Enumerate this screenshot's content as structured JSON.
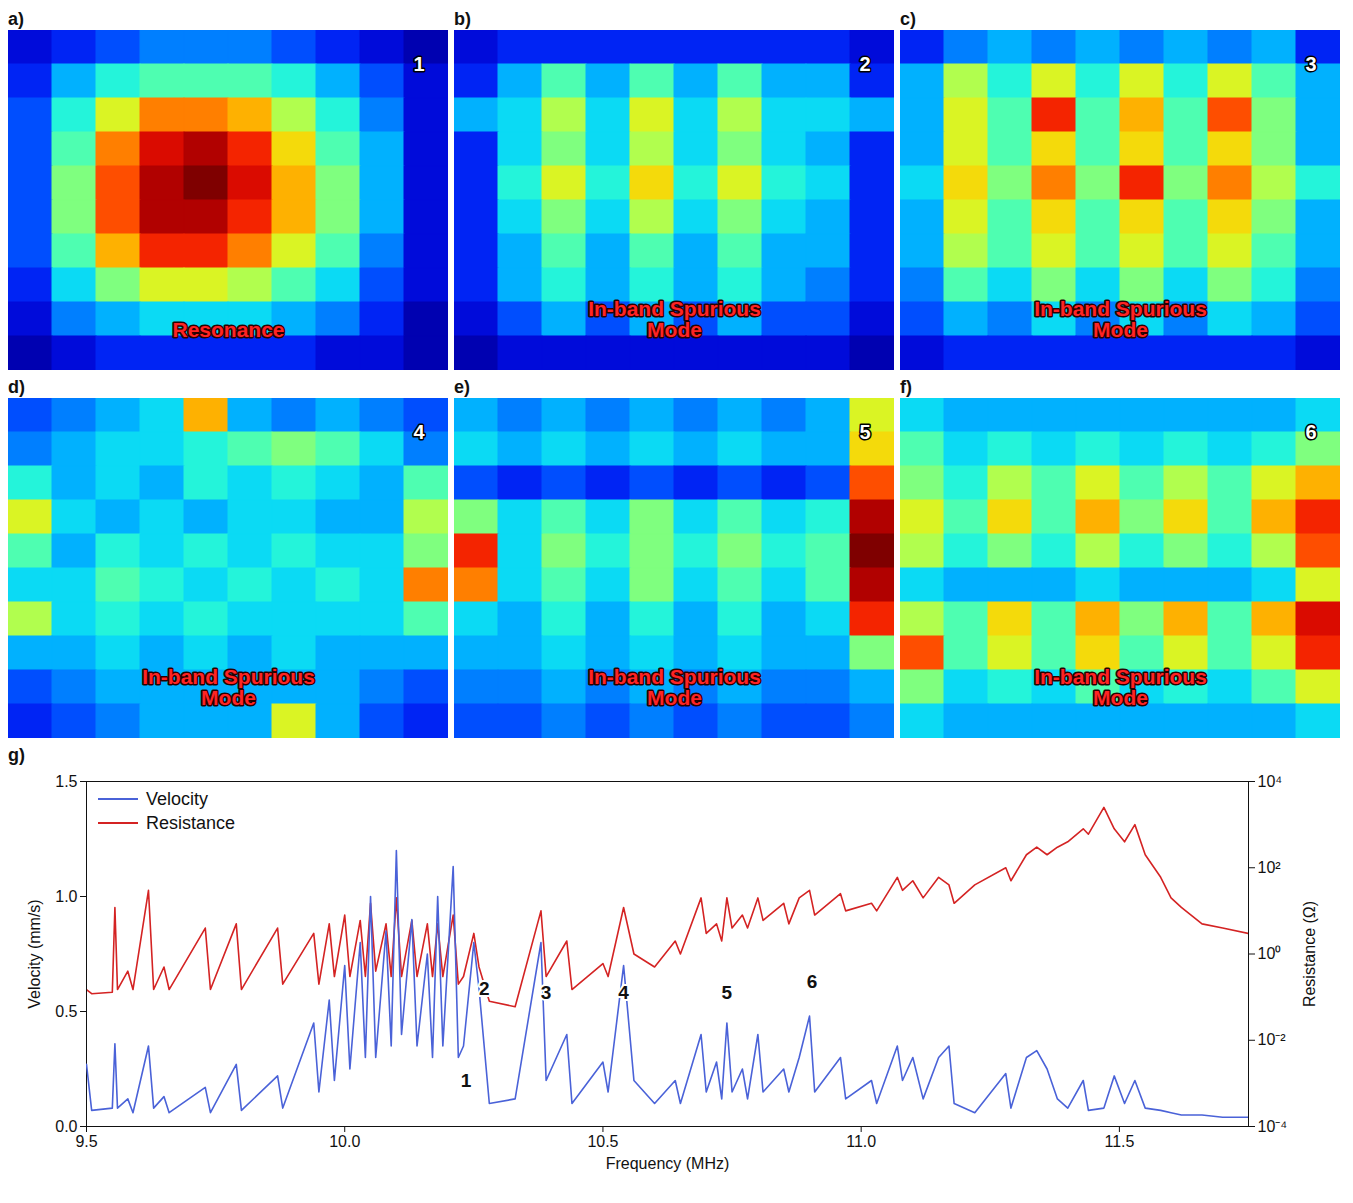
{
  "chart_data": [
    {
      "type": "heatmap",
      "panel": "a)",
      "number": "1",
      "annotation": "Resonance",
      "color": "jet",
      "zlim": [
        0,
        1
      ],
      "cells": [
        [
          0.1,
          0.15,
          0.2,
          0.25,
          0.25,
          0.25,
          0.2,
          0.15,
          0.1,
          0.05
        ],
        [
          0.15,
          0.3,
          0.4,
          0.45,
          0.45,
          0.45,
          0.4,
          0.3,
          0.2,
          0.1
        ],
        [
          0.2,
          0.4,
          0.6,
          0.75,
          0.75,
          0.7,
          0.55,
          0.4,
          0.25,
          0.1
        ],
        [
          0.2,
          0.45,
          0.75,
          0.9,
          0.95,
          0.85,
          0.65,
          0.45,
          0.3,
          0.1
        ],
        [
          0.2,
          0.5,
          0.8,
          0.95,
          1,
          0.9,
          0.7,
          0.5,
          0.3,
          0.1
        ],
        [
          0.2,
          0.5,
          0.8,
          0.95,
          0.95,
          0.85,
          0.7,
          0.5,
          0.3,
          0.1
        ],
        [
          0.2,
          0.45,
          0.7,
          0.85,
          0.85,
          0.75,
          0.6,
          0.45,
          0.25,
          0.1
        ],
        [
          0.15,
          0.35,
          0.5,
          0.6,
          0.6,
          0.55,
          0.45,
          0.35,
          0.2,
          0.1
        ],
        [
          0.1,
          0.25,
          0.3,
          0.35,
          0.35,
          0.35,
          0.3,
          0.25,
          0.15,
          0.05
        ],
        [
          0.05,
          0.1,
          0.15,
          0.15,
          0.15,
          0.15,
          0.15,
          0.1,
          0.1,
          0.05
        ]
      ]
    },
    {
      "type": "heatmap",
      "panel": "b)",
      "number": "2",
      "annotation": "In-band Spurious Mode",
      "color": "jet",
      "zlim": [
        0,
        1
      ],
      "cells": [
        [
          0.1,
          0.15,
          0.15,
          0.15,
          0.15,
          0.15,
          0.15,
          0.15,
          0.15,
          0.1
        ],
        [
          0.15,
          0.3,
          0.45,
          0.3,
          0.45,
          0.3,
          0.45,
          0.3,
          0.3,
          0.15
        ],
        [
          0.3,
          0.35,
          0.55,
          0.35,
          0.6,
          0.35,
          0.55,
          0.35,
          0.35,
          0.3
        ],
        [
          0.15,
          0.35,
          0.5,
          0.35,
          0.55,
          0.35,
          0.5,
          0.35,
          0.3,
          0.15
        ],
        [
          0.15,
          0.4,
          0.6,
          0.4,
          0.65,
          0.4,
          0.6,
          0.4,
          0.35,
          0.15
        ],
        [
          0.15,
          0.35,
          0.5,
          0.35,
          0.55,
          0.35,
          0.5,
          0.35,
          0.3,
          0.15
        ],
        [
          0.15,
          0.3,
          0.45,
          0.3,
          0.45,
          0.3,
          0.45,
          0.3,
          0.3,
          0.15
        ],
        [
          0.15,
          0.3,
          0.4,
          0.3,
          0.4,
          0.3,
          0.4,
          0.3,
          0.25,
          0.15
        ],
        [
          0.1,
          0.2,
          0.3,
          0.2,
          0.3,
          0.2,
          0.3,
          0.2,
          0.2,
          0.1
        ],
        [
          0.05,
          0.1,
          0.1,
          0.1,
          0.1,
          0.1,
          0.1,
          0.1,
          0.1,
          0.05
        ]
      ]
    },
    {
      "type": "heatmap",
      "panel": "c)",
      "number": "3",
      "annotation": "In-band Spurious Mode",
      "color": "jet",
      "zlim": [
        0,
        1
      ],
      "cells": [
        [
          0.15,
          0.25,
          0.3,
          0.25,
          0.3,
          0.25,
          0.3,
          0.25,
          0.3,
          0.15
        ],
        [
          0.3,
          0.55,
          0.4,
          0.6,
          0.4,
          0.6,
          0.4,
          0.6,
          0.45,
          0.3
        ],
        [
          0.3,
          0.6,
          0.45,
          0.85,
          0.45,
          0.7,
          0.45,
          0.8,
          0.5,
          0.3
        ],
        [
          0.3,
          0.6,
          0.45,
          0.65,
          0.45,
          0.65,
          0.45,
          0.65,
          0.5,
          0.3
        ],
        [
          0.35,
          0.65,
          0.5,
          0.75,
          0.5,
          0.85,
          0.5,
          0.75,
          0.55,
          0.4
        ],
        [
          0.3,
          0.6,
          0.45,
          0.65,
          0.45,
          0.65,
          0.45,
          0.65,
          0.5,
          0.3
        ],
        [
          0.3,
          0.55,
          0.45,
          0.6,
          0.45,
          0.6,
          0.45,
          0.6,
          0.45,
          0.3
        ],
        [
          0.25,
          0.45,
          0.35,
          0.5,
          0.35,
          0.5,
          0.35,
          0.5,
          0.4,
          0.25
        ],
        [
          0.2,
          0.3,
          0.25,
          0.35,
          0.25,
          0.35,
          0.25,
          0.35,
          0.3,
          0.2
        ],
        [
          0.1,
          0.15,
          0.15,
          0.15,
          0.15,
          0.15,
          0.15,
          0.15,
          0.15,
          0.1
        ]
      ]
    },
    {
      "type": "heatmap",
      "panel": "d)",
      "number": "4",
      "annotation": "In-band Spurious Mode",
      "color": "jet",
      "zlim": [
        0,
        1
      ],
      "cells": [
        [
          0.2,
          0.25,
          0.3,
          0.35,
          0.7,
          0.3,
          0.25,
          0.3,
          0.25,
          0.2
        ],
        [
          0.25,
          0.3,
          0.35,
          0.35,
          0.4,
          0.45,
          0.5,
          0.45,
          0.35,
          0.25
        ],
        [
          0.4,
          0.3,
          0.35,
          0.3,
          0.4,
          0.35,
          0.4,
          0.35,
          0.3,
          0.45
        ],
        [
          0.6,
          0.35,
          0.3,
          0.35,
          0.3,
          0.35,
          0.35,
          0.3,
          0.3,
          0.55
        ],
        [
          0.45,
          0.3,
          0.4,
          0.35,
          0.4,
          0.35,
          0.4,
          0.35,
          0.35,
          0.5
        ],
        [
          0.35,
          0.35,
          0.45,
          0.4,
          0.35,
          0.4,
          0.35,
          0.4,
          0.35,
          0.75
        ],
        [
          0.55,
          0.35,
          0.4,
          0.35,
          0.4,
          0.35,
          0.35,
          0.35,
          0.35,
          0.45
        ],
        [
          0.3,
          0.3,
          0.35,
          0.3,
          0.35,
          0.3,
          0.35,
          0.3,
          0.3,
          0.3
        ],
        [
          0.2,
          0.25,
          0.3,
          0.3,
          0.3,
          0.3,
          0.3,
          0.3,
          0.25,
          0.2
        ],
        [
          0.15,
          0.2,
          0.25,
          0.3,
          0.3,
          0.3,
          0.6,
          0.3,
          0.2,
          0.15
        ]
      ]
    },
    {
      "type": "heatmap",
      "panel": "e)",
      "number": "5",
      "annotation": "In-band Spurious Mode",
      "color": "jet",
      "zlim": [
        0,
        1
      ],
      "cells": [
        [
          0.3,
          0.25,
          0.3,
          0.25,
          0.3,
          0.25,
          0.3,
          0.25,
          0.3,
          0.6
        ],
        [
          0.35,
          0.3,
          0.35,
          0.3,
          0.35,
          0.3,
          0.35,
          0.3,
          0.3,
          0.65
        ],
        [
          0.2,
          0.15,
          0.2,
          0.15,
          0.2,
          0.15,
          0.2,
          0.15,
          0.2,
          0.8
        ],
        [
          0.5,
          0.35,
          0.45,
          0.35,
          0.5,
          0.35,
          0.45,
          0.35,
          0.4,
          0.95
        ],
        [
          0.85,
          0.35,
          0.5,
          0.4,
          0.5,
          0.4,
          0.5,
          0.4,
          0.45,
          1
        ],
        [
          0.75,
          0.35,
          0.45,
          0.35,
          0.5,
          0.35,
          0.45,
          0.35,
          0.45,
          0.95
        ],
        [
          0.35,
          0.3,
          0.4,
          0.3,
          0.4,
          0.3,
          0.4,
          0.3,
          0.35,
          0.85
        ],
        [
          0.3,
          0.3,
          0.35,
          0.3,
          0.35,
          0.3,
          0.35,
          0.3,
          0.3,
          0.5
        ],
        [
          0.25,
          0.25,
          0.3,
          0.25,
          0.3,
          0.25,
          0.3,
          0.25,
          0.25,
          0.3
        ],
        [
          0.2,
          0.2,
          0.25,
          0.2,
          0.25,
          0.2,
          0.25,
          0.2,
          0.2,
          0.25
        ]
      ]
    },
    {
      "type": "heatmap",
      "panel": "f)",
      "number": "6",
      "annotation": "In-band Spurious Mode",
      "color": "jet",
      "zlim": [
        0,
        1
      ],
      "cells": [
        [
          0.35,
          0.3,
          0.3,
          0.3,
          0.3,
          0.3,
          0.3,
          0.3,
          0.3,
          0.35
        ],
        [
          0.45,
          0.35,
          0.4,
          0.35,
          0.4,
          0.35,
          0.4,
          0.35,
          0.4,
          0.5
        ],
        [
          0.5,
          0.4,
          0.55,
          0.45,
          0.6,
          0.45,
          0.55,
          0.45,
          0.6,
          0.7
        ],
        [
          0.6,
          0.45,
          0.65,
          0.45,
          0.7,
          0.5,
          0.65,
          0.45,
          0.7,
          0.85
        ],
        [
          0.55,
          0.4,
          0.5,
          0.4,
          0.55,
          0.4,
          0.5,
          0.4,
          0.55,
          0.8
        ],
        [
          0.35,
          0.3,
          0.3,
          0.3,
          0.35,
          0.3,
          0.3,
          0.3,
          0.35,
          0.6
        ],
        [
          0.55,
          0.45,
          0.65,
          0.45,
          0.7,
          0.5,
          0.7,
          0.45,
          0.7,
          0.9
        ],
        [
          0.8,
          0.45,
          0.6,
          0.45,
          0.65,
          0.45,
          0.6,
          0.45,
          0.6,
          0.85
        ],
        [
          0.5,
          0.35,
          0.4,
          0.35,
          0.45,
          0.35,
          0.4,
          0.35,
          0.45,
          0.6
        ],
        [
          0.35,
          0.3,
          0.3,
          0.3,
          0.3,
          0.3,
          0.3,
          0.3,
          0.3,
          0.35
        ]
      ]
    },
    {
      "type": "line",
      "panel": "g)",
      "xlabel": "Frequency (MHz)",
      "ylabel": "Velocity (mm/s)",
      "y2label": "Resistance (Ω)",
      "legend": "upper left",
      "xlim": [
        9.5,
        11.75
      ],
      "xticks": [
        9.5,
        {
          "value": 10,
          "label": "10.0"
        },
        10.5,
        {
          "value": 11,
          "label": "11.0"
        },
        11.5
      ],
      "ylim": [
        0,
        1.5
      ],
      "yticks": [
        {
          "value": 0,
          "label": "0.0"
        },
        0.5,
        {
          "value": 1,
          "label": "1.0"
        },
        1.5
      ],
      "y2lim": [
        0.0001,
        10000
      ],
      "y2ticks": [
        {
          "value": 0.0001,
          "label": "10⁻⁴"
        },
        {
          "value": 0.01,
          "label": "10⁻²"
        },
        {
          "value": 1,
          "label": "10⁰"
        },
        {
          "value": 100,
          "label": "10²"
        },
        {
          "value": 10000,
          "label": "10⁴"
        }
      ],
      "x": [
        9.5,
        9.51,
        9.55,
        9.555,
        9.56,
        9.58,
        9.59,
        9.62,
        9.63,
        9.65,
        9.66,
        9.73,
        9.74,
        9.79,
        9.8,
        9.87,
        9.88,
        9.94,
        9.95,
        9.97,
        9.98,
        10,
        10.01,
        10.03,
        10.04,
        10.05,
        10.06,
        10.08,
        10.09,
        10.1,
        10.11,
        10.13,
        10.14,
        10.16,
        10.17,
        10.18,
        10.19,
        10.21,
        10.22,
        10.23,
        10.25,
        10.26,
        10.28,
        10.33,
        10.38,
        10.39,
        10.43,
        10.44,
        10.5,
        10.51,
        10.54,
        10.56,
        10.6,
        10.64,
        10.65,
        10.69,
        10.7,
        10.72,
        10.73,
        10.74,
        10.75,
        10.77,
        10.78,
        10.8,
        10.81,
        10.85,
        10.86,
        10.88,
        10.9,
        10.91,
        10.96,
        10.97,
        11.02,
        11.03,
        11.07,
        11.08,
        11.1,
        11.12,
        11.15,
        11.17,
        11.18,
        11.22,
        11.28,
        11.29,
        11.32,
        11.34,
        11.36,
        11.38,
        11.4,
        11.43,
        11.44,
        11.47,
        11.49,
        11.51,
        11.53,
        11.55,
        11.58,
        11.6,
        11.62,
        11.66,
        11.7,
        11.75
      ],
      "series": [
        {
          "name": "Velocity",
          "color": "#4a62d8",
          "values": [
            0.27,
            0.07,
            0.08,
            0.36,
            0.08,
            0.12,
            0.06,
            0.35,
            0.08,
            0.13,
            0.06,
            0.17,
            0.06,
            0.27,
            0.07,
            0.22,
            0.08,
            0.45,
            0.15,
            0.55,
            0.2,
            0.7,
            0.25,
            0.8,
            0.3,
            1,
            0.3,
            0.85,
            0.35,
            1.2,
            0.4,
            0.9,
            0.35,
            0.75,
            0.3,
            1,
            0.35,
            1.13,
            0.3,
            0.35,
            0.8,
            0.6,
            0.1,
            0.12,
            0.8,
            0.2,
            0.4,
            0.1,
            0.28,
            0.15,
            0.7,
            0.2,
            0.1,
            0.2,
            0.1,
            0.4,
            0.15,
            0.28,
            0.12,
            0.45,
            0.15,
            0.25,
            0.12,
            0.4,
            0.15,
            0.25,
            0.15,
            0.3,
            0.48,
            0.15,
            0.3,
            0.12,
            0.2,
            0.1,
            0.35,
            0.2,
            0.3,
            0.12,
            0.3,
            0.35,
            0.1,
            0.06,
            0.23,
            0.08,
            0.3,
            0.33,
            0.25,
            0.12,
            0.08,
            0.2,
            0.07,
            0.08,
            0.22,
            0.1,
            0.2,
            0.08,
            0.07,
            0.06,
            0.05,
            0.05,
            0.04,
            0.04
          ]
        },
        {
          "name": "Resistance",
          "color": "#d42323",
          "axis": "y2",
          "log": true,
          "values": [
            0.15,
            0.12,
            0.13,
            12,
            0.15,
            0.4,
            0.15,
            30,
            0.15,
            0.5,
            0.15,
            4,
            0.15,
            5,
            0.15,
            4,
            0.2,
            3,
            0.2,
            5,
            0.3,
            8,
            0.3,
            6,
            0.3,
            15,
            0.4,
            5,
            0.3,
            20,
            0.3,
            6,
            0.3,
            5,
            0.3,
            5,
            0.3,
            8,
            0.2,
            0.3,
            3,
            0.5,
            0.08,
            0.06,
            10,
            0.3,
            2,
            0.15,
            0.6,
            0.3,
            12,
            1,
            0.5,
            2,
            1,
            20,
            3,
            5,
            2,
            20,
            4,
            8,
            4,
            20,
            6,
            15,
            5,
            20,
            30,
            8,
            25,
            10,
            15,
            10,
            60,
            30,
            50,
            20,
            60,
            40,
            15,
            40,
            100,
            50,
            200,
            300,
            200,
            300,
            400,
            800,
            600,
            2500,
            800,
            400,
            1000,
            200,
            60,
            20,
            12,
            5,
            4,
            3
          ]
        }
      ],
      "annotations": [
        {
          "text": "1",
          "x": 10.235,
          "y": 0.2
        },
        {
          "text": "2",
          "x": 10.27,
          "y": 0.6
        },
        {
          "text": "3",
          "x": 10.39,
          "y": 0.58
        },
        {
          "text": "4",
          "x": 10.54,
          "y": 0.58
        },
        {
          "text": "5",
          "x": 10.74,
          "y": 0.58
        },
        {
          "text": "6",
          "x": 10.905,
          "y": 0.63
        }
      ]
    }
  ]
}
